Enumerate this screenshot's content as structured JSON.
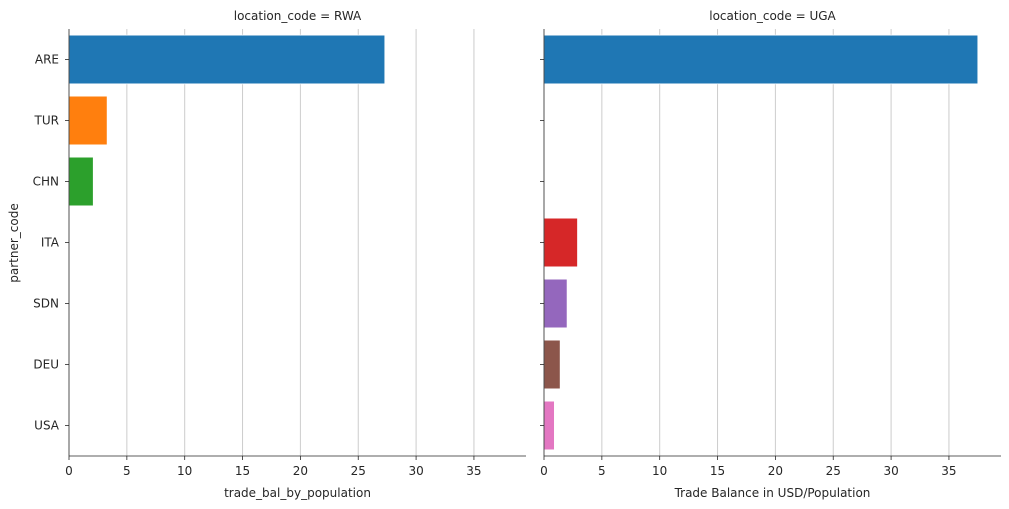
{
  "chart_data": {
    "type": "bar",
    "orientation": "horizontal",
    "categories": [
      "ARE",
      "TUR",
      "CHN",
      "ITA",
      "SDN",
      "DEU",
      "USA"
    ],
    "y_label": "partner_code",
    "grid": true,
    "colors": [
      "#1f77b4",
      "#ff7f0e",
      "#2ca02c",
      "#d62728",
      "#9467bd",
      "#8c564b",
      "#e377c2"
    ],
    "xlim": [
      0,
      39.5
    ],
    "xticks": [
      0,
      5,
      10,
      15,
      20,
      25,
      30,
      35
    ],
    "panels": [
      {
        "title": "location_code = RWA",
        "xlabel": "trade_bal_by_population",
        "values": [
          27.3,
          3.3,
          2.1,
          null,
          null,
          null,
          null
        ]
      },
      {
        "title": "location_code = UGA",
        "xlabel": "Trade Balance in USD/Population",
        "values": [
          37.5,
          null,
          null,
          2.9,
          2.0,
          1.4,
          0.9
        ]
      }
    ]
  }
}
